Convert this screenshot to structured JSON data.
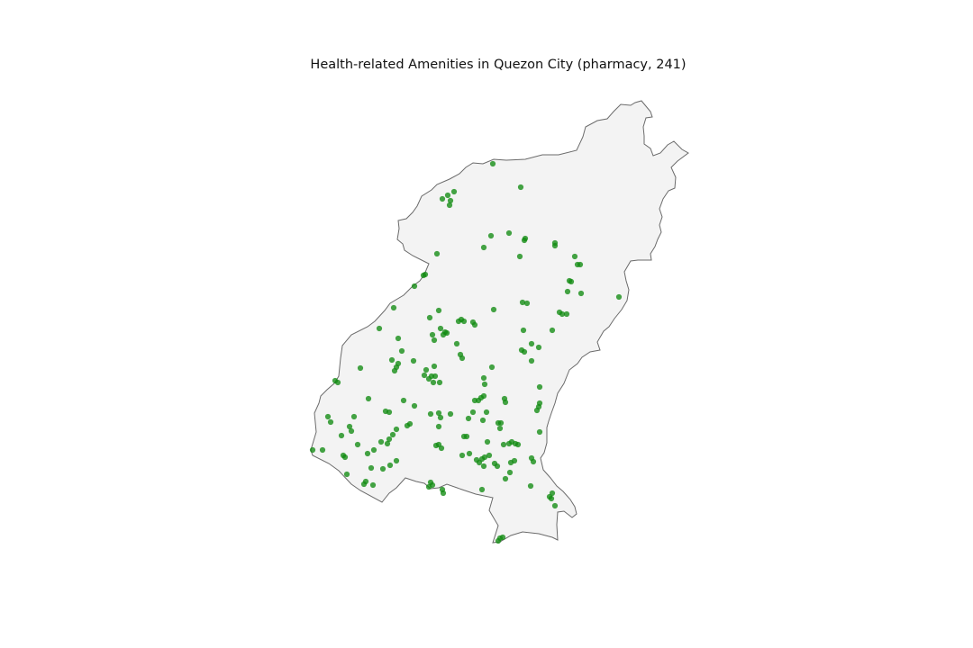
{
  "title": "Health-related Amenities in Quezon City (pharmacy, 241)",
  "colors": {
    "background": "#ffffff",
    "region_fill": "#f3f3f3",
    "region_stroke": "#6b6b6b",
    "point": "#118a11"
  }
}
